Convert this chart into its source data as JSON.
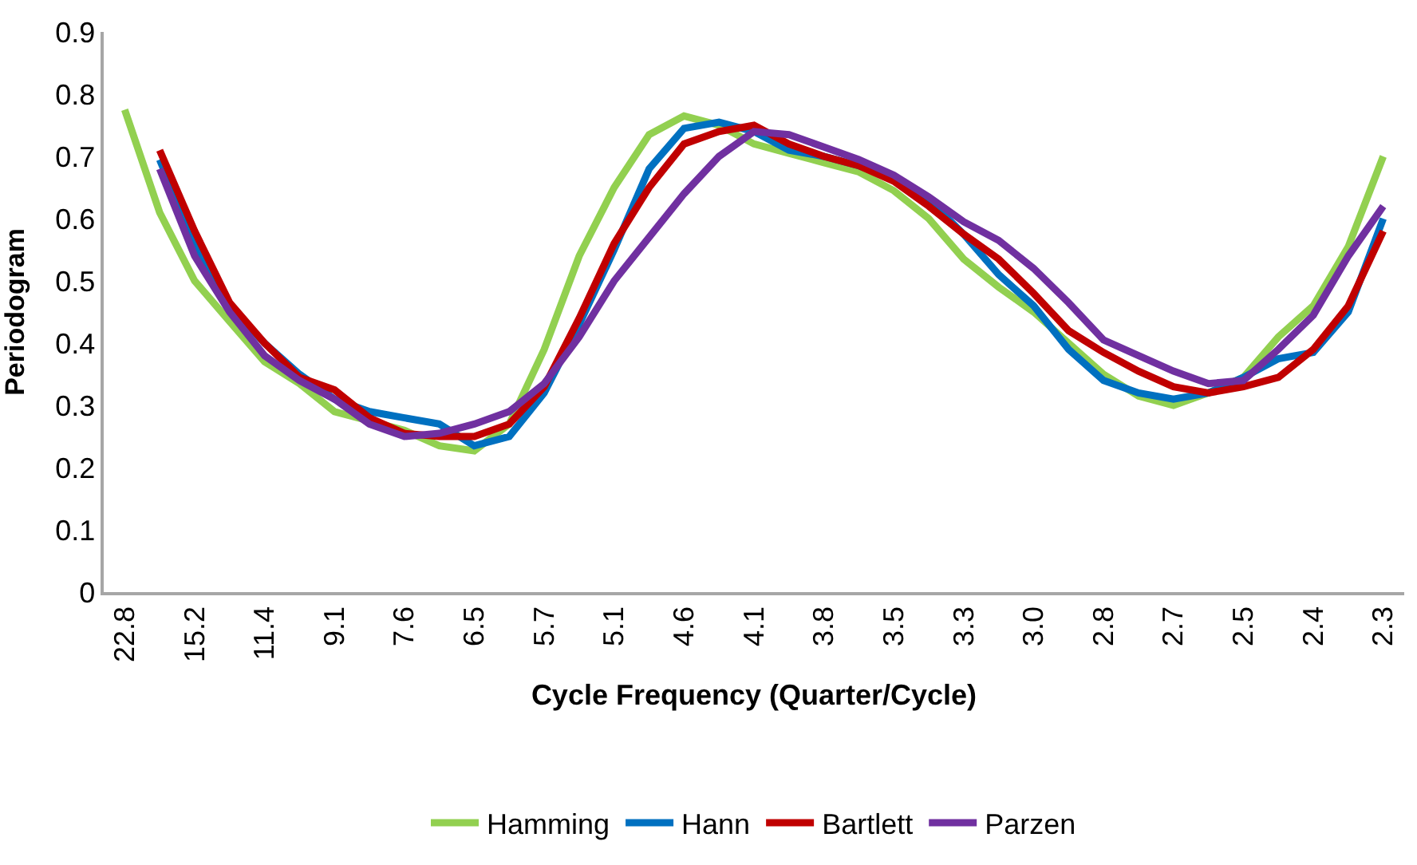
{
  "chart_data": {
    "type": "line",
    "xlabel": "Cycle Frequency (Quarter/Cycle)",
    "ylabel": "Periodogram",
    "categories": [
      "22.8",
      null,
      "15.2",
      null,
      "11.4",
      null,
      "9.1",
      null,
      "7.6",
      null,
      "6.5",
      null,
      "5.7",
      null,
      "5.1",
      null,
      "4.6",
      null,
      "4.1",
      null,
      "3.8",
      null,
      "3.5",
      null,
      "3.3",
      null,
      "3.0",
      null,
      "2.8",
      null,
      "2.7",
      null,
      "2.5",
      null,
      "2.4",
      null,
      "2.3"
    ],
    "ylim": [
      0,
      0.9
    ],
    "yticks": [
      0,
      0.1,
      0.2,
      0.3,
      0.4,
      0.5,
      0.6,
      0.7,
      0.8,
      0.9
    ],
    "grid": false,
    "legend": "bottom",
    "marker": "none",
    "line_style": "solid",
    "series": [
      {
        "name": "Hamming",
        "color": "#92d050",
        "values": [
          0.775,
          0.61,
          0.5,
          0.435,
          0.37,
          0.335,
          0.29,
          0.275,
          0.26,
          0.235,
          0.227,
          0.27,
          0.39,
          0.54,
          0.65,
          0.735,
          0.765,
          0.75,
          0.72,
          0.705,
          0.69,
          0.675,
          0.645,
          0.6,
          0.535,
          0.49,
          0.45,
          0.4,
          0.35,
          0.315,
          0.3,
          0.32,
          0.345,
          0.41,
          0.46,
          0.555,
          0.7
        ]
      },
      {
        "name": "Hann",
        "color": "#0070c0",
        "values": [
          null,
          0.695,
          0.56,
          0.46,
          0.4,
          0.35,
          0.31,
          0.29,
          0.28,
          0.27,
          0.235,
          0.25,
          0.32,
          0.43,
          0.55,
          0.68,
          0.745,
          0.755,
          0.74,
          0.71,
          0.7,
          0.685,
          0.665,
          0.63,
          0.575,
          0.51,
          0.46,
          0.39,
          0.34,
          0.32,
          0.31,
          0.32,
          0.345,
          0.375,
          0.385,
          0.45,
          0.6
        ]
      },
      {
        "name": "Bartlett",
        "color": "#c00000",
        "values": [
          null,
          0.71,
          0.58,
          0.465,
          0.4,
          0.345,
          0.325,
          0.28,
          0.255,
          0.25,
          0.25,
          0.27,
          0.33,
          0.44,
          0.56,
          0.65,
          0.72,
          0.74,
          0.75,
          0.72,
          0.7,
          0.685,
          0.66,
          0.62,
          0.575,
          0.535,
          0.48,
          0.42,
          0.385,
          0.355,
          0.33,
          0.32,
          0.33,
          0.345,
          0.39,
          0.46,
          0.58
        ]
      },
      {
        "name": "Parzen",
        "color": "#7030a0",
        "values": [
          null,
          0.68,
          0.54,
          0.45,
          0.38,
          0.34,
          0.31,
          0.27,
          0.25,
          0.255,
          0.27,
          0.29,
          0.335,
          0.41,
          0.5,
          0.57,
          0.64,
          0.7,
          0.74,
          0.735,
          0.715,
          0.695,
          0.67,
          0.635,
          0.595,
          0.565,
          0.52,
          0.465,
          0.405,
          0.38,
          0.355,
          0.335,
          0.34,
          0.39,
          0.445,
          0.54,
          0.62
        ]
      }
    ]
  }
}
